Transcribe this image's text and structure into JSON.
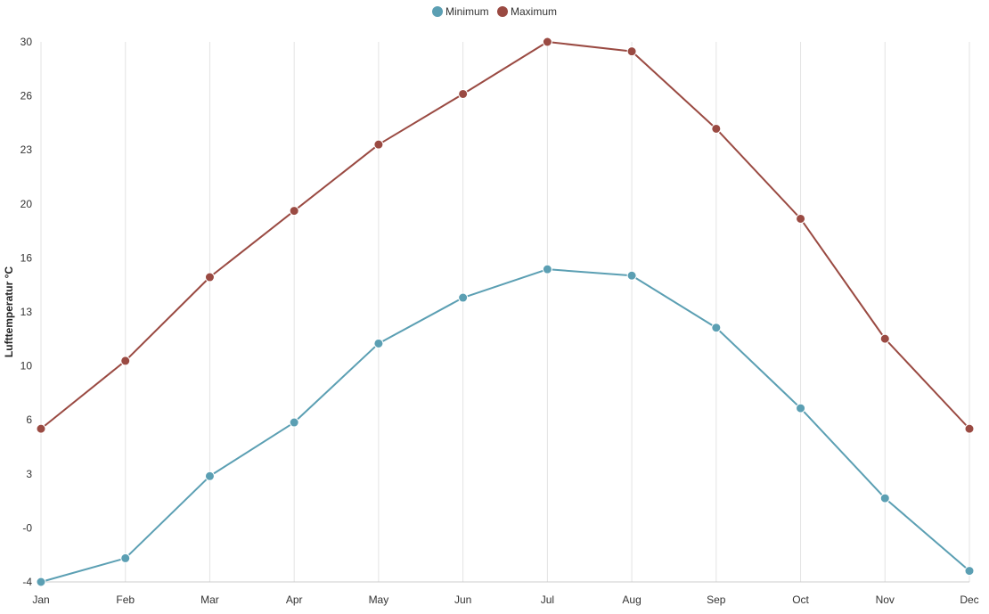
{
  "chart_data": {
    "type": "line",
    "categories": [
      "Jan",
      "Feb",
      "Mar",
      "Apr",
      "May",
      "Jun",
      "Jul",
      "Aug",
      "Sep",
      "Oct",
      "Nov",
      "Dec"
    ],
    "ylabel": "Lufttemperatur °C",
    "ylim": [
      -4.2,
      30
    ],
    "yticks": [
      "-4",
      "-0",
      "3",
      "6",
      "10",
      "13",
      "16",
      "20",
      "23",
      "26",
      "30"
    ],
    "grid": "vertical",
    "legend_position": "top-center",
    "series": [
      {
        "name": "Minimum",
        "color": "#5b9fb3",
        "values": [
          -4.2,
          -2.7,
          2.5,
          5.9,
          10.9,
          13.8,
          15.6,
          15.2,
          11.9,
          6.8,
          1.1,
          -3.5
        ]
      },
      {
        "name": "Maximum",
        "color": "#9a4a42",
        "values": [
          5.5,
          9.8,
          15.1,
          19.3,
          23.5,
          26.7,
          30.0,
          29.4,
          24.5,
          18.8,
          11.2,
          5.5
        ]
      }
    ]
  }
}
